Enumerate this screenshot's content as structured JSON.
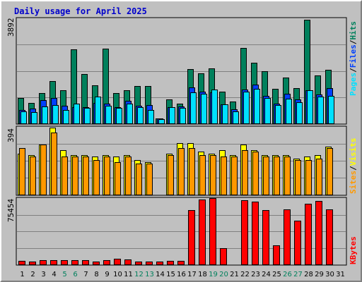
{
  "chart_data": {
    "title": "Daily usage for April 2025",
    "type": "bar",
    "categories": [
      "1",
      "2",
      "3",
      "4",
      "5",
      "6",
      "7",
      "8",
      "9",
      "10",
      "11",
      "12",
      "13",
      "14",
      "15",
      "16",
      "17",
      "18",
      "19",
      "20",
      "21",
      "22",
      "23",
      "24",
      "25",
      "26",
      "27",
      "28",
      "29",
      "30",
      "31"
    ],
    "weekend_days": [
      5,
      6,
      12,
      13,
      19,
      20,
      26,
      27
    ],
    "colors": {
      "hits": "#00805c",
      "files": "#0040ff",
      "pages": "#00e0ff",
      "visits": "#ffff00",
      "sites": "#ff9900",
      "kbytes": "#ff0000",
      "weekday_label": "#000000",
      "weekend_label": "#00805c"
    },
    "panels": {
      "top": {
        "ymax_label": "3892",
        "ymax": 3892,
        "legend": {
          "pages": "Pages",
          "files": "Files",
          "hits": "Hits",
          "sep": "/"
        },
        "series": [
          {
            "name": "Hits",
            "values": [
              940,
              760,
              1130,
              1570,
              1240,
              2740,
              1830,
              1400,
              2780,
              1120,
              1220,
              1390,
              1390,
              190,
              880,
              740,
              2000,
              1850,
              2050,
              1180,
              820,
              2800,
              2240,
              1920,
              1270,
              1710,
              1310,
              3850,
              1780,
              1990,
              0
            ]
          },
          {
            "name": "Files",
            "values": [
              500,
              540,
              850,
              950,
              660,
              610,
              600,
              760,
              720,
              600,
              830,
              660,
              680,
              190,
              600,
              630,
              1320,
              1180,
              1150,
              710,
              520,
              1250,
              1430,
              1030,
              730,
              1090,
              900,
              1240,
              1080,
              1310,
              0
            ]
          },
          {
            "name": "Pages",
            "values": [
              440,
              430,
              620,
              690,
              490,
              730,
              580,
              980,
              650,
              570,
              730,
              590,
              500,
              150,
              600,
              580,
              1150,
              1110,
              1260,
              700,
              450,
              1180,
              1290,
              950,
              680,
              910,
              790,
              1220,
              980,
              1010,
              0
            ]
          }
        ]
      },
      "middle": {
        "ymax_label": "394",
        "ymax": 394,
        "legend": {
          "sites": "Sites",
          "visits": "Visits",
          "sep": "/"
        },
        "series": [
          {
            "name": "Visits",
            "values": [
              240,
              230,
              290,
              390,
              260,
              230,
              230,
              220,
              230,
              220,
              230,
              200,
              190,
              0,
              240,
              300,
              300,
              250,
              240,
              260,
              230,
              290,
              260,
              230,
              230,
              230,
              210,
              220,
              230,
              280,
              0
            ]
          },
          {
            "name": "Sites",
            "values": [
              270,
              220,
              290,
              360,
              220,
              220,
              220,
              200,
              220,
              190,
              220,
              180,
              180,
              0,
              230,
              270,
              270,
              230,
              230,
              220,
              220,
              260,
              250,
              220,
              220,
              220,
              200,
              200,
              210,
              270,
              0
            ]
          }
        ]
      },
      "bottom": {
        "ymax_label": "75454",
        "ymax": 75454,
        "legend": {
          "kbytes": "KBytes"
        },
        "series": [
          {
            "name": "KBytes",
            "values": [
              3800,
              3400,
              5200,
              5200,
              4600,
              4600,
              4600,
              3600,
              4600,
              6200,
              5900,
              3200,
              3400,
              3400,
              3900,
              3900,
              62000,
              74000,
              75454,
              18700,
              0,
              72700,
              71800,
              62000,
              21800,
              62400,
              49700,
              69000,
              72000,
              62400,
              0
            ]
          }
        ]
      }
    }
  }
}
